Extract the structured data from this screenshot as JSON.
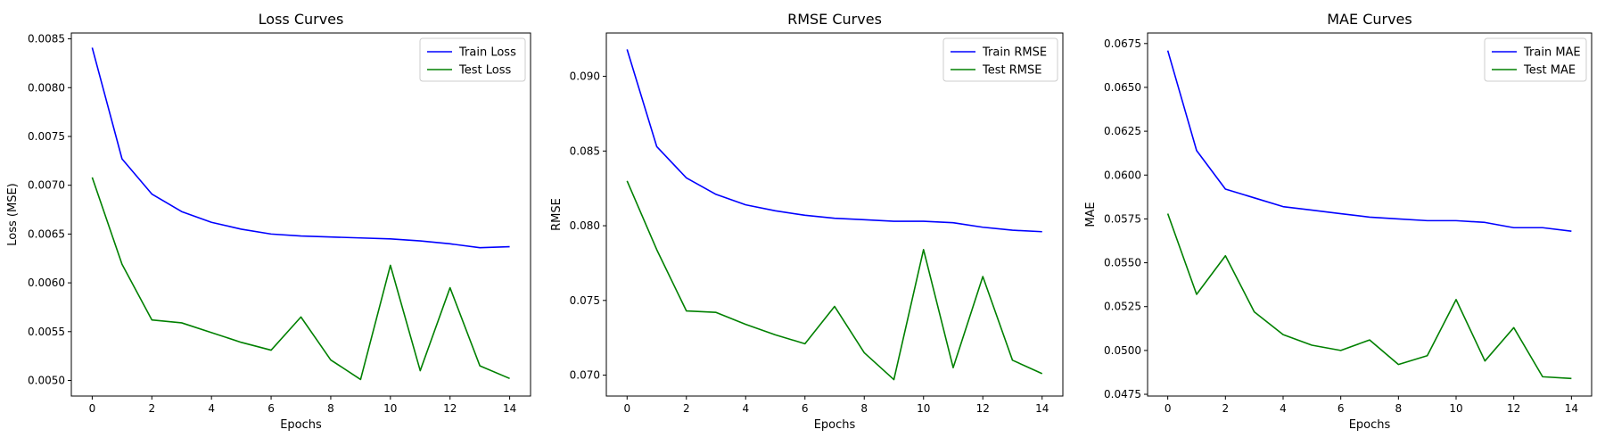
{
  "chart_data": [
    {
      "type": "line",
      "title": "Loss Curves",
      "xlabel": "Epochs",
      "ylabel": "Loss (MSE)",
      "x": [
        0,
        1,
        2,
        3,
        4,
        5,
        6,
        7,
        8,
        9,
        10,
        11,
        12,
        13,
        14
      ],
      "xlim": [
        -0.7,
        14.7
      ],
      "ylim": [
        0.00484,
        0.00856
      ],
      "xticks": [
        0,
        2,
        4,
        6,
        8,
        10,
        12,
        14
      ],
      "xtick_labels": [
        "0",
        "2",
        "4",
        "6",
        "8",
        "10",
        "12",
        "14"
      ],
      "yticks": [
        0.005,
        0.0055,
        0.006,
        0.0065,
        0.007,
        0.0075,
        0.008,
        0.0085
      ],
      "ytick_labels": [
        "0.0050",
        "0.0055",
        "0.0060",
        "0.0065",
        "0.0070",
        "0.0075",
        "0.0080",
        "0.0085"
      ],
      "legend_position": "top-right",
      "grid": false,
      "series": [
        {
          "name": "Train Loss",
          "color": "#0000ff",
          "values": [
            0.00841,
            0.00727,
            0.00691,
            0.00673,
            0.00662,
            0.00655,
            0.0065,
            0.00648,
            0.00647,
            0.00646,
            0.00645,
            0.00643,
            0.0064,
            0.00636,
            0.00637
          ]
        },
        {
          "name": "Test Loss",
          "color": "#008000",
          "values": [
            0.00708,
            0.00619,
            0.00562,
            0.00559,
            0.00549,
            0.00539,
            0.00531,
            0.00565,
            0.00521,
            0.00501,
            0.00618,
            0.0051,
            0.00595,
            0.00515,
            0.00502
          ]
        }
      ]
    },
    {
      "type": "line",
      "title": "RMSE Curves",
      "xlabel": "Epochs",
      "ylabel": "RMSE",
      "x": [
        0,
        1,
        2,
        3,
        4,
        5,
        6,
        7,
        8,
        9,
        10,
        11,
        12,
        13,
        14
      ],
      "xlim": [
        -0.7,
        14.7
      ],
      "ylim": [
        0.0686,
        0.0929
      ],
      "xticks": [
        0,
        2,
        4,
        6,
        8,
        10,
        12,
        14
      ],
      "xtick_labels": [
        "0",
        "2",
        "4",
        "6",
        "8",
        "10",
        "12",
        "14"
      ],
      "yticks": [
        0.07,
        0.075,
        0.08,
        0.085,
        0.09
      ],
      "ytick_labels": [
        "0.070",
        "0.075",
        "0.080",
        "0.085",
        "0.090"
      ],
      "legend_position": "top-right",
      "grid": false,
      "series": [
        {
          "name": "Train RMSE",
          "color": "#0000ff",
          "values": [
            0.0918,
            0.0853,
            0.0832,
            0.0821,
            0.0814,
            0.081,
            0.0807,
            0.0805,
            0.0804,
            0.0803,
            0.0803,
            0.0802,
            0.0799,
            0.0797,
            0.0796
          ]
        },
        {
          "name": "Test RMSE",
          "color": "#008000",
          "values": [
            0.083,
            0.0784,
            0.0743,
            0.0742,
            0.0734,
            0.0727,
            0.0721,
            0.0746,
            0.0715,
            0.0697,
            0.0784,
            0.0705,
            0.0766,
            0.071,
            0.0701
          ]
        }
      ]
    },
    {
      "type": "line",
      "title": "MAE Curves",
      "xlabel": "Epochs",
      "ylabel": "MAE",
      "x": [
        0,
        1,
        2,
        3,
        4,
        5,
        6,
        7,
        8,
        9,
        10,
        11,
        12,
        13,
        14
      ],
      "xlim": [
        -0.7,
        14.7
      ],
      "ylim": [
        0.0474,
        0.0681
      ],
      "xticks": [
        0,
        2,
        4,
        6,
        8,
        10,
        12,
        14
      ],
      "xtick_labels": [
        "0",
        "2",
        "4",
        "6",
        "8",
        "10",
        "12",
        "14"
      ],
      "yticks": [
        0.0475,
        0.05,
        0.0525,
        0.055,
        0.0575,
        0.06,
        0.0625,
        0.065,
        0.0675
      ],
      "ytick_labels": [
        "0.0475",
        "0.0500",
        "0.0525",
        "0.0550",
        "0.0575",
        "0.0600",
        "0.0625",
        "0.0650",
        "0.0675"
      ],
      "legend_position": "top-right",
      "grid": false,
      "series": [
        {
          "name": "Train MAE",
          "color": "#0000ff",
          "values": [
            0.0671,
            0.0614,
            0.0592,
            0.0587,
            0.0582,
            0.058,
            0.0578,
            0.0576,
            0.0575,
            0.0574,
            0.0574,
            0.0573,
            0.057,
            0.057,
            0.0568
          ]
        },
        {
          "name": "Test MAE",
          "color": "#008000",
          "values": [
            0.0578,
            0.0532,
            0.0554,
            0.0522,
            0.0509,
            0.0503,
            0.05,
            0.0506,
            0.0492,
            0.0497,
            0.0529,
            0.0494,
            0.0513,
            0.0485,
            0.0484
          ]
        }
      ]
    }
  ]
}
